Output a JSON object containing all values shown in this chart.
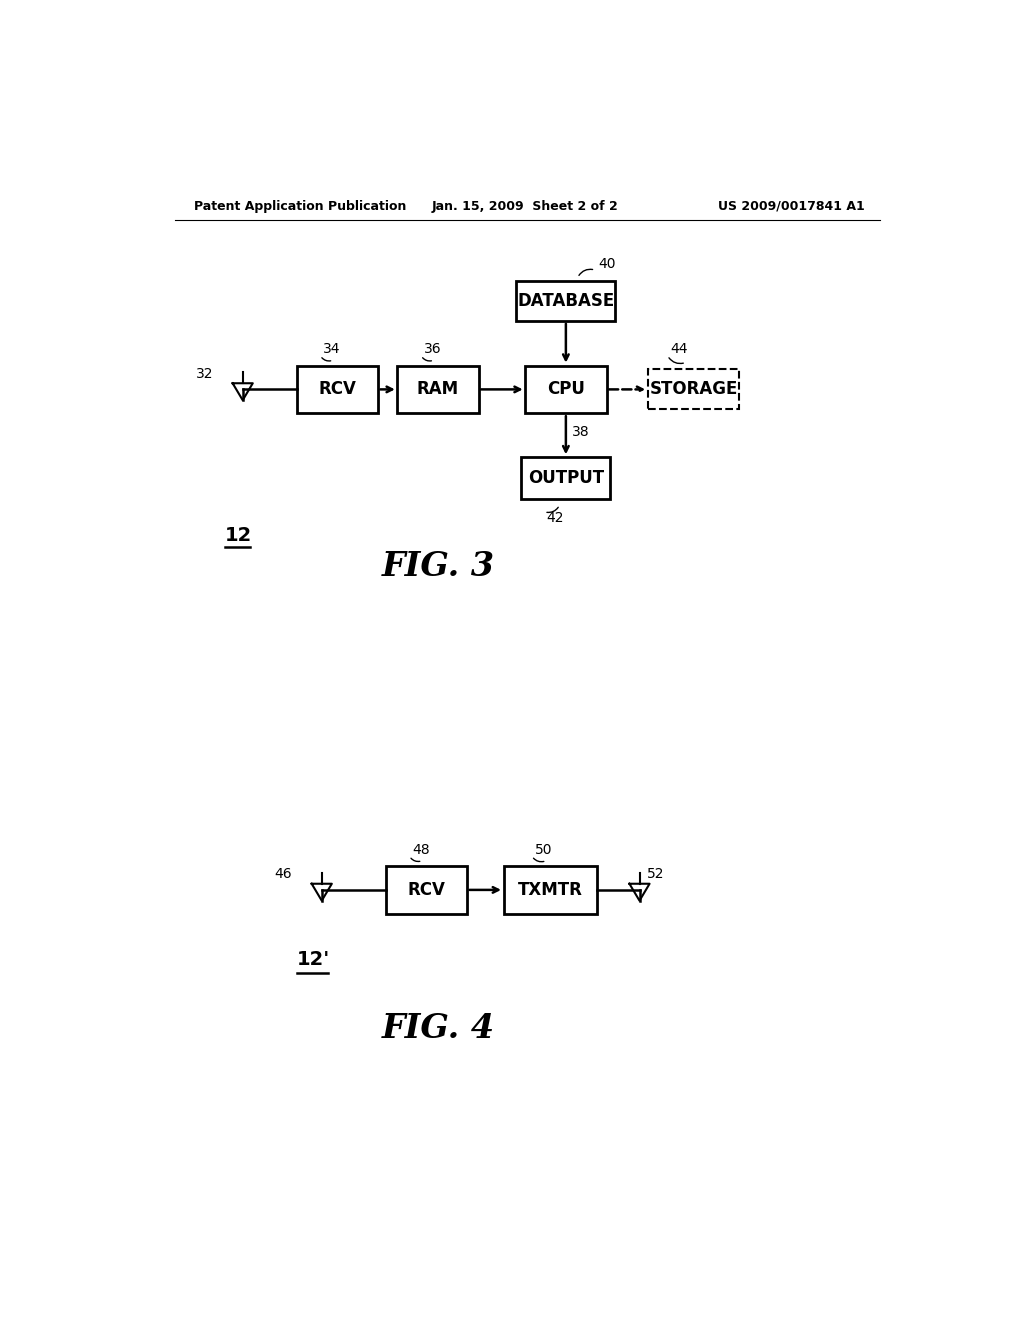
{
  "bg_color": "#ffffff",
  "header_left": "Patent Application Publication",
  "header_center": "Jan. 15, 2009  Sheet 2 of 2",
  "header_right": "US 2009/0017841 A1",
  "fig3_label": "FIG. 3",
  "fig4_label": "FIG. 4"
}
